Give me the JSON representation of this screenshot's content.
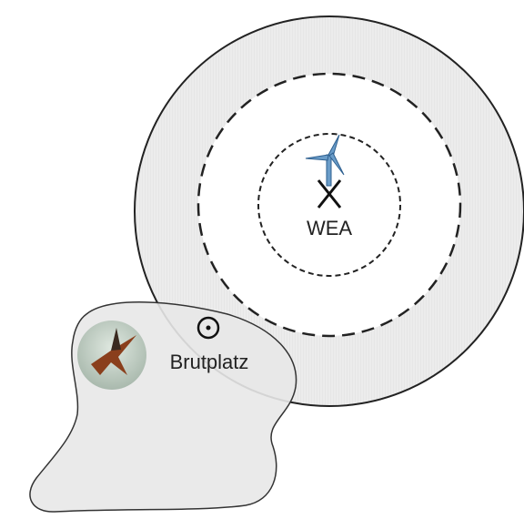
{
  "labels": {
    "turbine": "WEA",
    "nest": "Brutplatz"
  }
}
